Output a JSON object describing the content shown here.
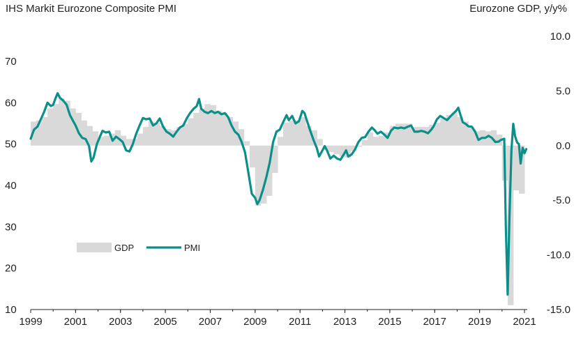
{
  "chart_data": {
    "type": "line",
    "title": "IHS Markit Eurozone Composite PMI",
    "right_axis_title": "Eurozone GDP, y/y%",
    "x_ticks": [
      "1999",
      "2001",
      "2003",
      "2005",
      "2007",
      "2009",
      "2011",
      "2013",
      "2015",
      "2017",
      "2019",
      "2021"
    ],
    "y_left": {
      "lim": [
        10,
        70
      ],
      "ticks": [
        "10",
        "20",
        "30",
        "40",
        "50",
        "60",
        "70"
      ]
    },
    "y_right": {
      "lim": [
        -15,
        10
      ],
      "ticks": [
        "-15.0",
        "-10.0",
        "-5.0",
        "0.0",
        "5.0",
        "10.0"
      ]
    },
    "legend": [
      "GDP",
      "PMI"
    ],
    "colors": {
      "PMI": "#0b8f8a",
      "GDP": "#d9d9d9",
      "axis": "#222222"
    },
    "series": [
      {
        "name": "GDP",
        "axis": "right",
        "kind": "bar",
        "points": [
          [
            1999.0,
            2.2
          ],
          [
            1999.25,
            2.3
          ],
          [
            1999.5,
            2.6
          ],
          [
            1999.75,
            3.4
          ],
          [
            2000.0,
            3.8
          ],
          [
            2000.25,
            4.3
          ],
          [
            2000.5,
            4.1
          ],
          [
            2000.75,
            3.4
          ],
          [
            2001.0,
            3.0
          ],
          [
            2001.25,
            2.3
          ],
          [
            2001.5,
            1.8
          ],
          [
            2001.75,
            1.3
          ],
          [
            2002.0,
            0.8
          ],
          [
            2002.25,
            0.9
          ],
          [
            2002.5,
            1.1
          ],
          [
            2002.75,
            1.4
          ],
          [
            2003.0,
            0.9
          ],
          [
            2003.25,
            0.6
          ],
          [
            2003.5,
            0.6
          ],
          [
            2003.75,
            1.1
          ],
          [
            2004.0,
            1.7
          ],
          [
            2004.25,
            2.2
          ],
          [
            2004.5,
            2.1
          ],
          [
            2004.75,
            1.8
          ],
          [
            2005.0,
            1.5
          ],
          [
            2005.25,
            1.4
          ],
          [
            2005.5,
            1.7
          ],
          [
            2005.75,
            2.0
          ],
          [
            2006.0,
            2.5
          ],
          [
            2006.25,
            3.0
          ],
          [
            2006.5,
            3.4
          ],
          [
            2006.75,
            3.8
          ],
          [
            2007.0,
            3.7
          ],
          [
            2007.25,
            3.2
          ],
          [
            2007.5,
            3.0
          ],
          [
            2007.75,
            2.6
          ],
          [
            2008.0,
            2.2
          ],
          [
            2008.25,
            1.5
          ],
          [
            2008.5,
            0.4
          ],
          [
            2008.75,
            -2.0
          ],
          [
            2009.0,
            -5.5
          ],
          [
            2009.25,
            -5.3
          ],
          [
            2009.5,
            -4.6
          ],
          [
            2009.75,
            -2.5
          ],
          [
            2010.0,
            0.8
          ],
          [
            2010.25,
            2.1
          ],
          [
            2010.5,
            2.3
          ],
          [
            2010.75,
            2.3
          ],
          [
            2011.0,
            2.6
          ],
          [
            2011.25,
            1.8
          ],
          [
            2011.5,
            1.4
          ],
          [
            2011.75,
            0.6
          ],
          [
            2012.0,
            -0.4
          ],
          [
            2012.25,
            -0.6
          ],
          [
            2012.5,
            -0.8
          ],
          [
            2012.75,
            -1.0
          ],
          [
            2013.0,
            -1.1
          ],
          [
            2013.25,
            -0.5
          ],
          [
            2013.5,
            -0.1
          ],
          [
            2013.75,
            0.5
          ],
          [
            2014.0,
            1.2
          ],
          [
            2014.25,
            0.8
          ],
          [
            2014.5,
            0.9
          ],
          [
            2014.75,
            1.2
          ],
          [
            2015.0,
            1.8
          ],
          [
            2015.25,
            2.0
          ],
          [
            2015.5,
            2.0
          ],
          [
            2015.75,
            2.0
          ],
          [
            2016.0,
            1.7
          ],
          [
            2016.25,
            1.7
          ],
          [
            2016.5,
            1.7
          ],
          [
            2016.75,
            1.9
          ],
          [
            2017.0,
            2.1
          ],
          [
            2017.25,
            2.5
          ],
          [
            2017.5,
            2.8
          ],
          [
            2017.75,
            3.0
          ],
          [
            2018.0,
            2.6
          ],
          [
            2018.25,
            2.2
          ],
          [
            2018.5,
            1.7
          ],
          [
            2018.75,
            1.3
          ],
          [
            2019.0,
            1.4
          ],
          [
            2019.25,
            1.3
          ],
          [
            2019.5,
            1.4
          ],
          [
            2019.75,
            1.0
          ],
          [
            2020.0,
            -3.2
          ],
          [
            2020.25,
            -14.6
          ],
          [
            2020.5,
            -4.1
          ],
          [
            2020.75,
            -4.4
          ]
        ]
      },
      {
        "name": "PMI",
        "axis": "left",
        "kind": "line",
        "points": [
          [
            1999.0,
            51.3
          ],
          [
            1999.15,
            53.5
          ],
          [
            1999.3,
            54.2
          ],
          [
            1999.45,
            56.0
          ],
          [
            1999.6,
            57.8
          ],
          [
            1999.75,
            60.0
          ],
          [
            1999.9,
            59.2
          ],
          [
            2000.0,
            59.5
          ],
          [
            2000.1,
            61.0
          ],
          [
            2000.2,
            62.3
          ],
          [
            2000.3,
            61.2
          ],
          [
            2000.45,
            60.5
          ],
          [
            2000.6,
            59.5
          ],
          [
            2000.75,
            57.0
          ],
          [
            2000.9,
            55.5
          ],
          [
            2001.0,
            54.5
          ],
          [
            2001.15,
            52.6
          ],
          [
            2001.3,
            51.5
          ],
          [
            2001.45,
            51.2
          ],
          [
            2001.6,
            49.5
          ],
          [
            2001.7,
            45.8
          ],
          [
            2001.8,
            46.7
          ],
          [
            2001.95,
            50.0
          ],
          [
            2002.1,
            52.0
          ],
          [
            2002.2,
            53.2
          ],
          [
            2002.35,
            52.8
          ],
          [
            2002.5,
            53.0
          ],
          [
            2002.65,
            50.8
          ],
          [
            2002.8,
            51.8
          ],
          [
            2002.95,
            51.2
          ],
          [
            2003.1,
            50.5
          ],
          [
            2003.25,
            48.5
          ],
          [
            2003.4,
            48.2
          ],
          [
            2003.55,
            50.0
          ],
          [
            2003.7,
            52.5
          ],
          [
            2003.85,
            54.5
          ],
          [
            2004.0,
            56.3
          ],
          [
            2004.15,
            56.0
          ],
          [
            2004.3,
            56.2
          ],
          [
            2004.45,
            54.5
          ],
          [
            2004.6,
            55.0
          ],
          [
            2004.75,
            56.2
          ],
          [
            2004.9,
            54.2
          ],
          [
            2005.05,
            53.0
          ],
          [
            2005.2,
            52.5
          ],
          [
            2005.35,
            51.8
          ],
          [
            2005.5,
            53.0
          ],
          [
            2005.65,
            54.0
          ],
          [
            2005.8,
            54.5
          ],
          [
            2005.95,
            56.2
          ],
          [
            2006.1,
            57.5
          ],
          [
            2006.25,
            58.5
          ],
          [
            2006.4,
            59.2
          ],
          [
            2006.5,
            60.9
          ],
          [
            2006.6,
            58.5
          ],
          [
            2006.75,
            57.8
          ],
          [
            2006.9,
            57.5
          ],
          [
            2007.05,
            58.0
          ],
          [
            2007.2,
            57.5
          ],
          [
            2007.35,
            57.8
          ],
          [
            2007.5,
            57.2
          ],
          [
            2007.65,
            57.5
          ],
          [
            2007.8,
            56.5
          ],
          [
            2007.95,
            54.5
          ],
          [
            2008.1,
            53.0
          ],
          [
            2008.25,
            52.3
          ],
          [
            2008.4,
            50.5
          ],
          [
            2008.55,
            48.0
          ],
          [
            2008.7,
            43.0
          ],
          [
            2008.85,
            38.0
          ],
          [
            2009.0,
            37.0
          ],
          [
            2009.1,
            35.5
          ],
          [
            2009.2,
            36.5
          ],
          [
            2009.35,
            39.0
          ],
          [
            2009.5,
            42.0
          ],
          [
            2009.65,
            45.5
          ],
          [
            2009.8,
            50.5
          ],
          [
            2009.95,
            53.0
          ],
          [
            2010.1,
            53.5
          ],
          [
            2010.25,
            55.3
          ],
          [
            2010.4,
            57.0
          ],
          [
            2010.5,
            55.8
          ],
          [
            2010.65,
            56.8
          ],
          [
            2010.8,
            55.0
          ],
          [
            2010.95,
            55.5
          ],
          [
            2011.1,
            58.0
          ],
          [
            2011.2,
            57.5
          ],
          [
            2011.3,
            55.8
          ],
          [
            2011.45,
            53.3
          ],
          [
            2011.6,
            51.0
          ],
          [
            2011.75,
            49.0
          ],
          [
            2011.85,
            47.0
          ],
          [
            2011.95,
            48.0
          ],
          [
            2012.1,
            49.5
          ],
          [
            2012.2,
            48.5
          ],
          [
            2012.35,
            46.5
          ],
          [
            2012.5,
            47.2
          ],
          [
            2012.65,
            46.5
          ],
          [
            2012.8,
            46.2
          ],
          [
            2012.95,
            47.5
          ],
          [
            2013.05,
            48.5
          ],
          [
            2013.15,
            47.0
          ],
          [
            2013.3,
            47.5
          ],
          [
            2013.45,
            48.7
          ],
          [
            2013.6,
            50.5
          ],
          [
            2013.75,
            51.5
          ],
          [
            2013.9,
            51.7
          ],
          [
            2014.05,
            53.0
          ],
          [
            2014.2,
            54.0
          ],
          [
            2014.3,
            53.5
          ],
          [
            2014.45,
            52.5
          ],
          [
            2014.6,
            53.0
          ],
          [
            2014.75,
            52.3
          ],
          [
            2014.9,
            51.5
          ],
          [
            2015.05,
            53.2
          ],
          [
            2015.2,
            54.0
          ],
          [
            2015.35,
            53.8
          ],
          [
            2015.5,
            54.0
          ],
          [
            2015.65,
            53.8
          ],
          [
            2015.8,
            54.2
          ],
          [
            2015.95,
            54.5
          ],
          [
            2016.1,
            53.0
          ],
          [
            2016.25,
            53.0
          ],
          [
            2016.4,
            53.2
          ],
          [
            2016.55,
            53.0
          ],
          [
            2016.7,
            52.6
          ],
          [
            2016.85,
            53.5
          ],
          [
            2016.95,
            54.3
          ],
          [
            2017.1,
            56.0
          ],
          [
            2017.25,
            56.8
          ],
          [
            2017.4,
            56.3
          ],
          [
            2017.55,
            55.8
          ],
          [
            2017.7,
            56.7
          ],
          [
            2017.85,
            57.5
          ],
          [
            2017.95,
            58.0
          ],
          [
            2018.05,
            58.8
          ],
          [
            2018.15,
            57.0
          ],
          [
            2018.25,
            55.3
          ],
          [
            2018.4,
            54.8
          ],
          [
            2018.5,
            54.3
          ],
          [
            2018.65,
            54.2
          ],
          [
            2018.8,
            53.0
          ],
          [
            2018.95,
            51.0
          ],
          [
            2019.1,
            51.5
          ],
          [
            2019.25,
            51.5
          ],
          [
            2019.4,
            52.0
          ],
          [
            2019.55,
            51.5
          ],
          [
            2019.7,
            50.5
          ],
          [
            2019.85,
            50.6
          ],
          [
            2019.95,
            51.0
          ],
          [
            2020.1,
            51.3
          ],
          [
            2020.17,
            29.7
          ],
          [
            2020.25,
            13.6
          ],
          [
            2020.33,
            31.9
          ],
          [
            2020.42,
            48.5
          ],
          [
            2020.5,
            54.9
          ],
          [
            2020.58,
            51.9
          ],
          [
            2020.67,
            50.4
          ],
          [
            2020.75,
            50.0
          ],
          [
            2020.83,
            45.3
          ],
          [
            2020.92,
            49.1
          ],
          [
            2021.0,
            47.8
          ],
          [
            2021.08,
            48.8
          ]
        ]
      }
    ]
  }
}
